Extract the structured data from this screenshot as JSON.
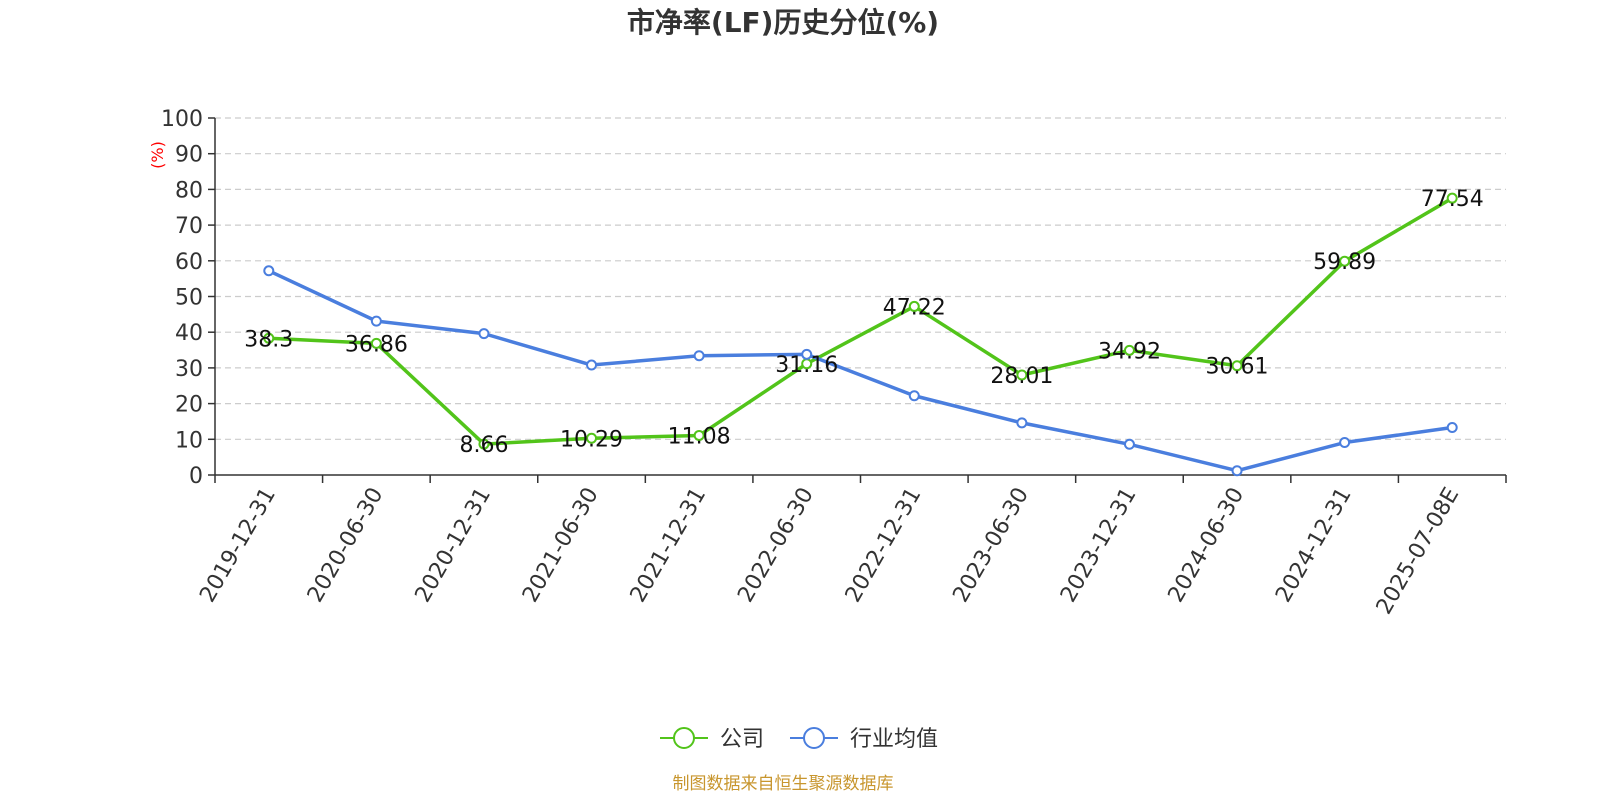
{
  "chart_data": {
    "type": "line",
    "title": "市净率(LF)历史分位(%)",
    "y_unit_label": "(%)",
    "categories": [
      "2019-12-31",
      "2020-06-30",
      "2020-12-31",
      "2021-06-30",
      "2021-12-31",
      "2022-06-30",
      "2022-12-31",
      "2023-06-30",
      "2023-12-31",
      "2024-06-30",
      "2024-12-31",
      "2025-07-08E"
    ],
    "ylim": [
      0,
      100
    ],
    "yticks": [
      "0",
      "10",
      "20",
      "30",
      "40",
      "50",
      "60",
      "70",
      "80",
      "90",
      "100"
    ],
    "grid": true,
    "legend_position": "bottom",
    "series": [
      {
        "name": "公司",
        "color": "#52c41a",
        "values": [
          38.3,
          36.86,
          8.66,
          10.29,
          11.08,
          31.16,
          47.22,
          28.01,
          34.92,
          30.61,
          59.89,
          77.54
        ],
        "labels": [
          "38.3",
          "36.86",
          "8.66",
          "10.29",
          "11.08",
          "31.16",
          "47.22",
          "28.01",
          "34.92",
          "30.61",
          "59.89",
          "77.54"
        ]
      },
      {
        "name": "行业均值",
        "color": "#4a7ede",
        "values": [
          57.2,
          43.1,
          39.6,
          30.8,
          33.4,
          33.8,
          22.2,
          14.6,
          8.6,
          1.2,
          9.1,
          13.3
        ]
      }
    ],
    "source_text": "制图数据来自恒生聚源数据库",
    "source_color": "#c8962e"
  }
}
